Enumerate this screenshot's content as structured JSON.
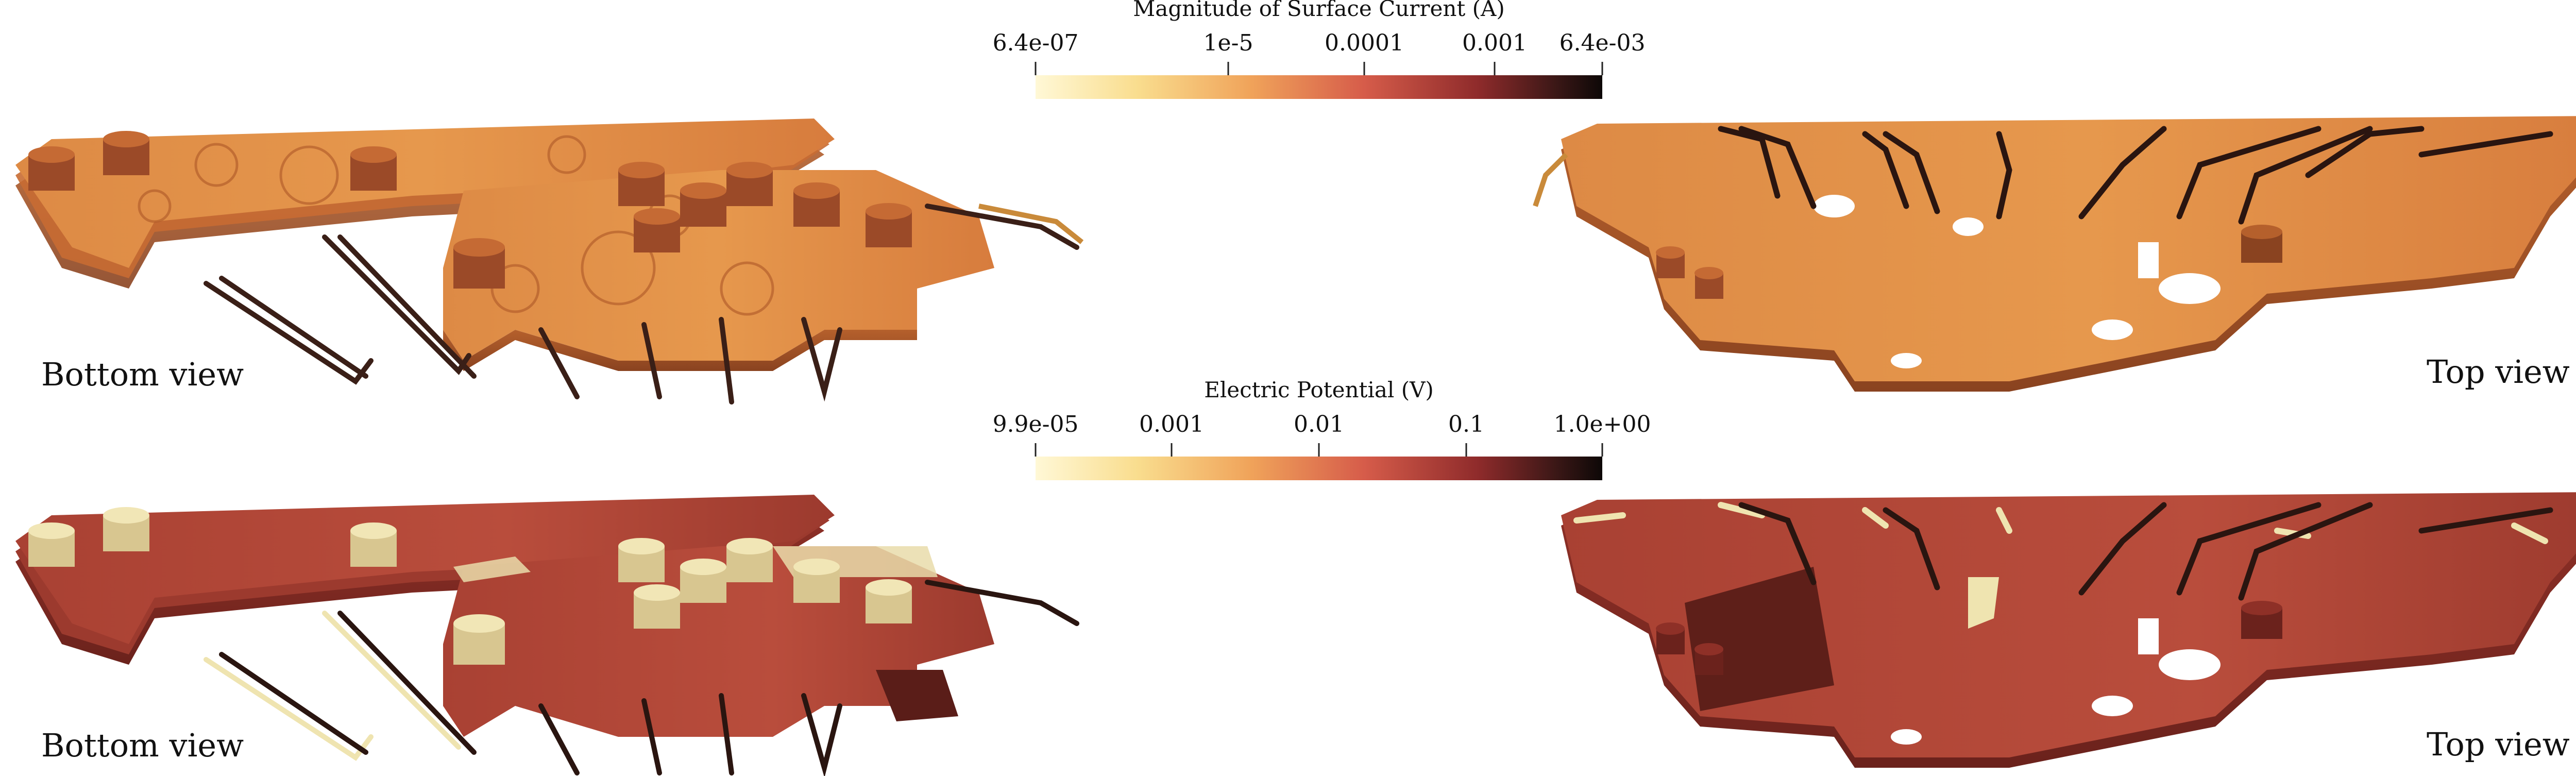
{
  "colorbars": [
    {
      "title": "Magnitude of Surface Current (A)",
      "ticks": [
        "6.4e-07",
        "1e-5",
        "0.0001",
        "0.001",
        "6.4e-03"
      ]
    },
    {
      "title": "Electric Potential (V)",
      "ticks": [
        "9.9e-05",
        "0.001",
        "0.01",
        "0.1",
        "1.0e+00"
      ]
    }
  ],
  "views": {
    "top_row": {
      "left_label": "Bottom view",
      "right_label": "Top view"
    },
    "bottom_row": {
      "left_label": "Bottom view",
      "right_label": "Top view"
    }
  },
  "colors": {
    "current_field": "#e08840",
    "potential_field": "#b4483a",
    "trace_dark": "#3a1f17",
    "trace_light": "#efe4b0"
  }
}
